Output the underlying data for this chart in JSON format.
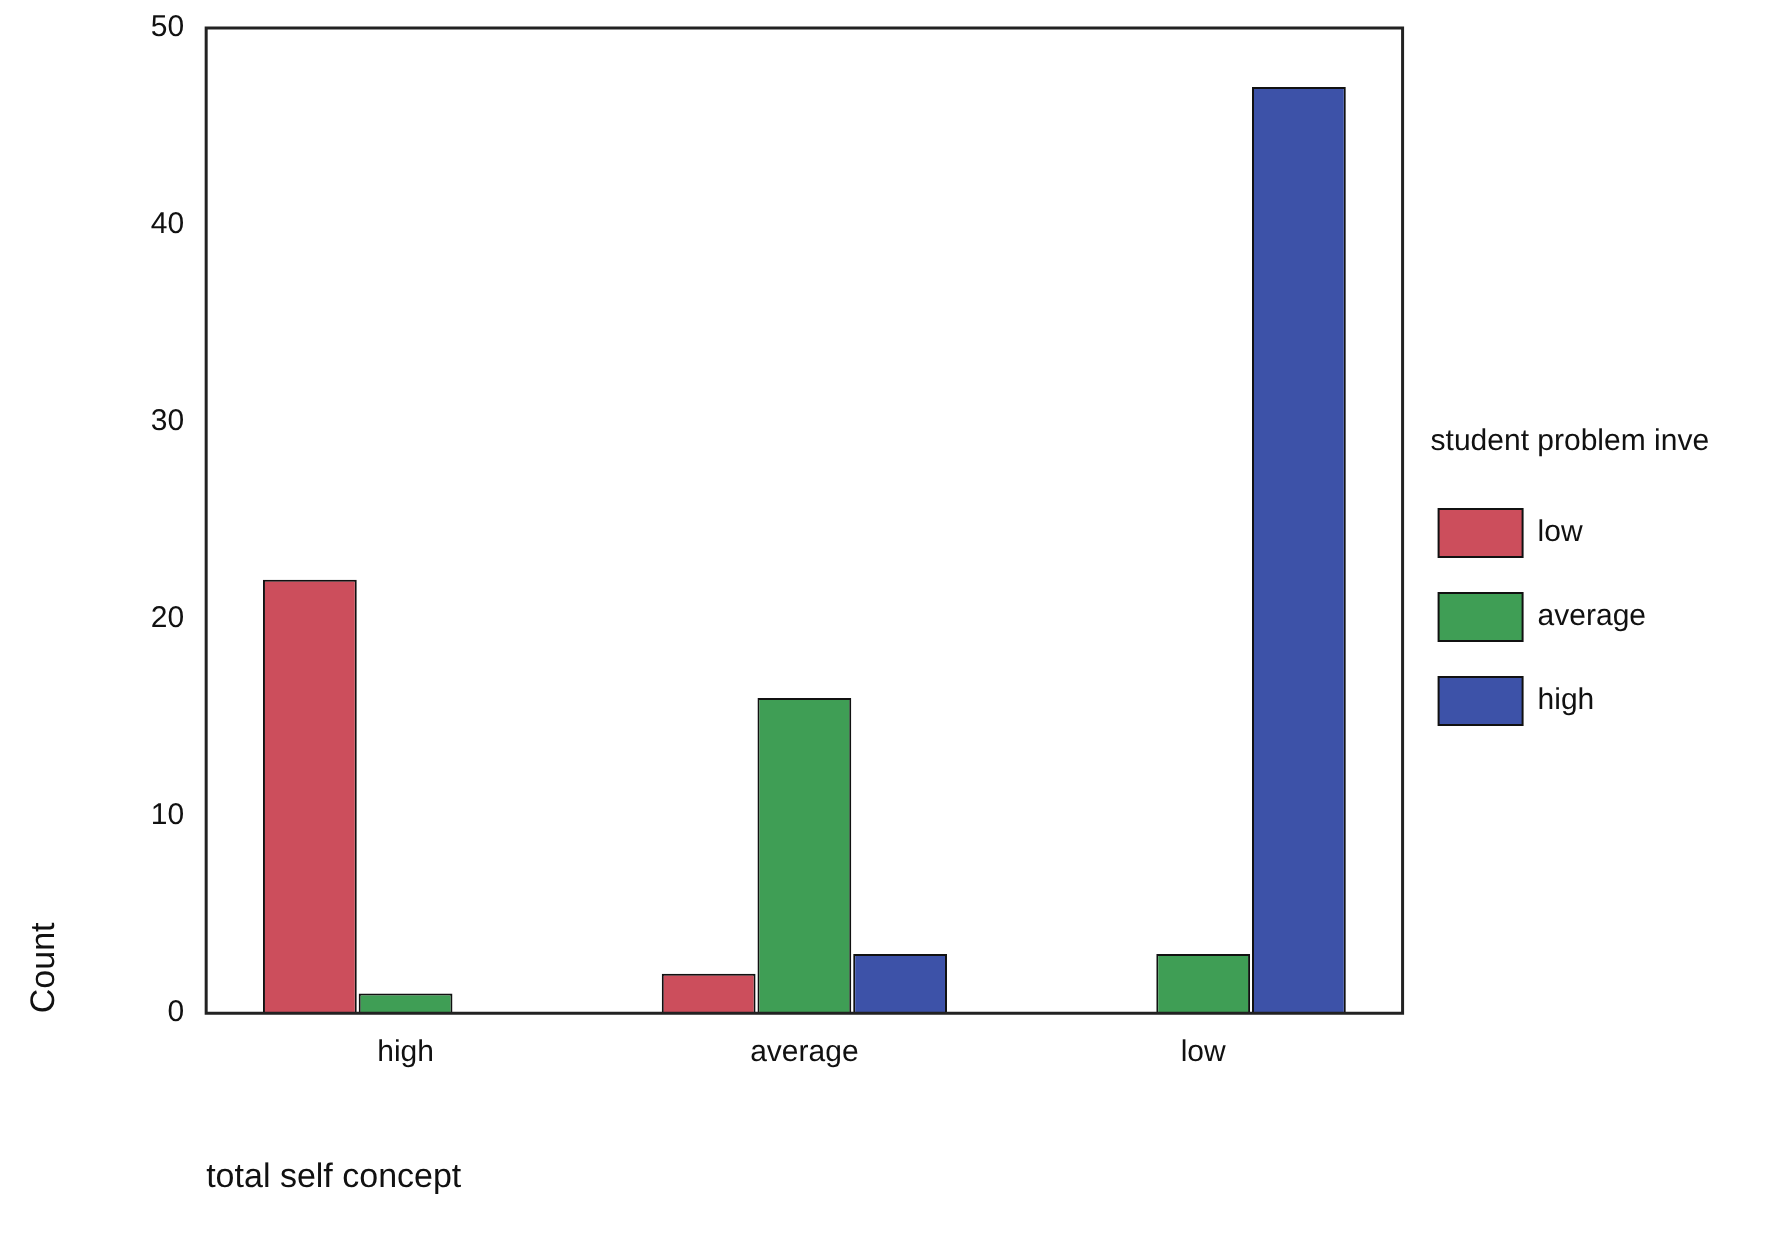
{
  "chart_data": {
    "type": "bar",
    "xlabel": "total self concept",
    "ylabel": "Count",
    "legend_title": "student problem inve",
    "categories": [
      "high",
      "average",
      "low"
    ],
    "series": [
      {
        "name": "low",
        "color": "#cc4e5c",
        "values": [
          22,
          2,
          0
        ]
      },
      {
        "name": "average",
        "color": "#3f9e55",
        "values": [
          1,
          16,
          3
        ]
      },
      {
        "name": "high",
        "color": "#3d52a8",
        "values": [
          0,
          3,
          47
        ]
      }
    ],
    "ylim": [
      0,
      50
    ],
    "yticks": [
      0,
      10,
      20,
      30,
      40,
      50
    ],
    "grid": false,
    "legend": "right"
  }
}
